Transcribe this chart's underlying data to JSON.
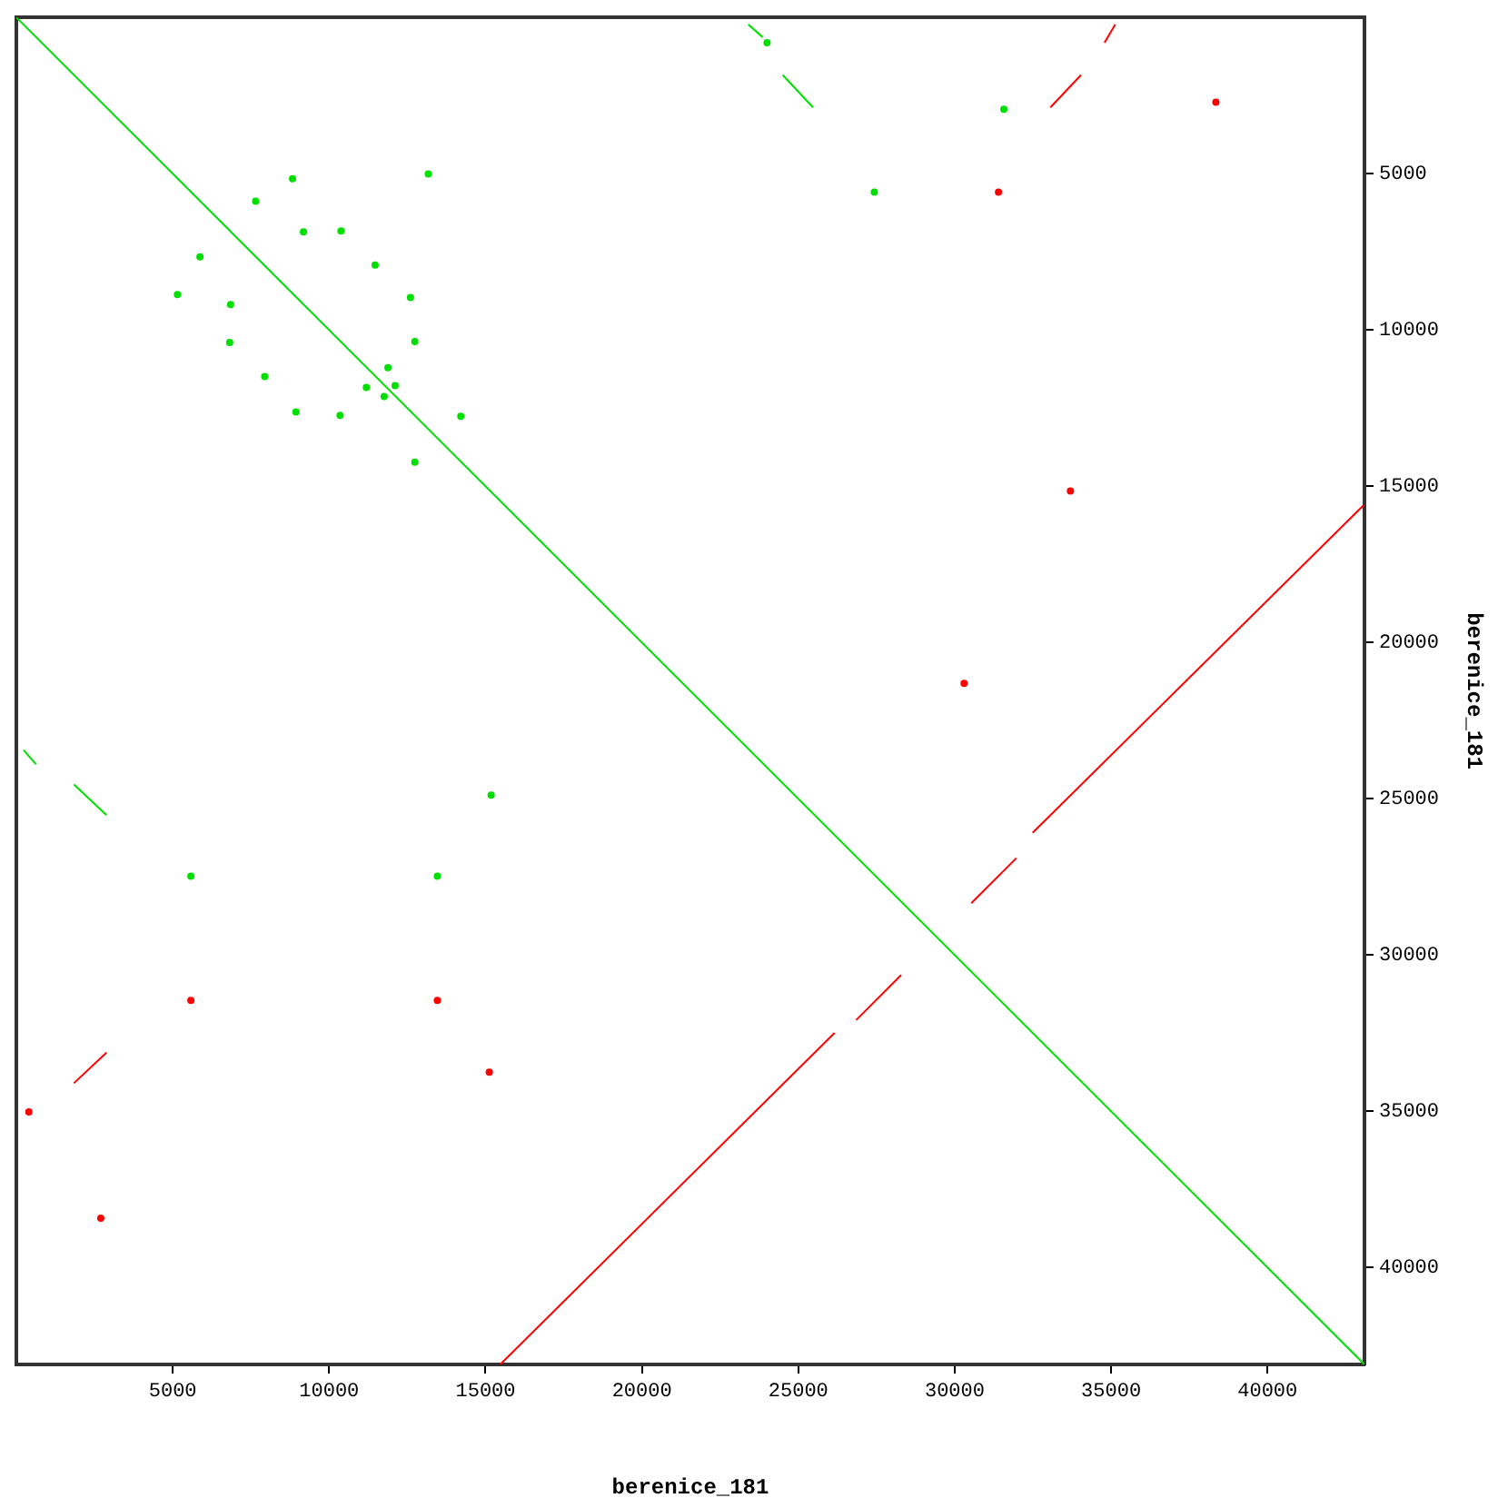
{
  "chart_data": {
    "type": "line",
    "xlabel": "berenice_181",
    "ylabel": "berenice_181",
    "xlim": [
      0,
      43100
    ],
    "ylim": [
      43100,
      0
    ],
    "xticks": [
      5000,
      10000,
      15000,
      20000,
      25000,
      30000,
      35000,
      40000
    ],
    "yticks": [
      5000,
      10000,
      15000,
      20000,
      25000,
      30000,
      35000,
      40000
    ],
    "grid": false,
    "legend": false,
    "line_style": "solid",
    "series": [
      {
        "color": "#00e000",
        "x": [
          0,
          43100
        ],
        "values": [
          0,
          43100
        ]
      },
      {
        "color": "#00e000",
        "x": [
          23400,
          23860
        ],
        "values": [
          230,
          630
        ]
      },
      {
        "color": "#00e000",
        "x": [
          24500,
          25470
        ],
        "values": [
          1840,
          2880
        ]
      },
      {
        "color": "#00e000",
        "x": [
          230,
          630
        ],
        "values": [
          23440,
          23900
        ]
      },
      {
        "color": "#00e000",
        "x": [
          1840,
          2880
        ],
        "values": [
          24540,
          25520
        ]
      },
      {
        "color": "#ff0000",
        "x": [
          43070,
          32490
        ],
        "values": [
          15610,
          26090
        ]
      },
      {
        "color": "#ff0000",
        "x": [
          31970,
          30530
        ],
        "values": [
          26900,
          28340
        ]
      },
      {
        "color": "#ff0000",
        "x": [
          28290,
          26850
        ],
        "values": [
          30640,
          32080
        ]
      },
      {
        "color": "#ff0000",
        "x": [
          26160,
          15470
        ],
        "values": [
          32490,
          43100
        ]
      },
      {
        "color": "#ff0000",
        "x": [
          33060,
          34040
        ],
        "values": [
          2880,
          1840
        ]
      },
      {
        "color": "#ff0000",
        "x": [
          34790,
          35130
        ],
        "values": [
          810,
          230
        ]
      },
      {
        "color": "#ff0000",
        "x": [
          1840,
          2880
        ],
        "values": [
          34100,
          33120
        ]
      },
      {
        "type": "scatter",
        "color": "#00e000",
        "x": [
          15180,
          5580,
          13460,
          24000,
          31570,
          27430,
          8830,
          13170,
          7650,
          9180,
          10380,
          5870,
          5150,
          6850,
          6820,
          11470,
          12600,
          12740,
          7940,
          8940,
          10350,
          11880,
          11190,
          12110,
          11760,
          14210,
          12740
        ],
        "values": [
          24880,
          27480,
          27480,
          810,
          2940,
          5590,
          5160,
          5010,
          5880,
          6860,
          6830,
          7660,
          8870,
          9190,
          10400,
          7920,
          8960,
          10370,
          11490,
          12620,
          12730,
          11210,
          11840,
          11780,
          12130,
          12760,
          14230
        ]
      },
      {
        "type": "scatter",
        "color": "#ff0000",
        "x": [
          38350,
          33700,
          30300,
          5580,
          13460,
          15120,
          2700,
          31400,
          400
        ],
        "values": [
          2710,
          15150,
          21310,
          31450,
          31450,
          33750,
          38420,
          5590,
          35020
        ]
      }
    ]
  }
}
